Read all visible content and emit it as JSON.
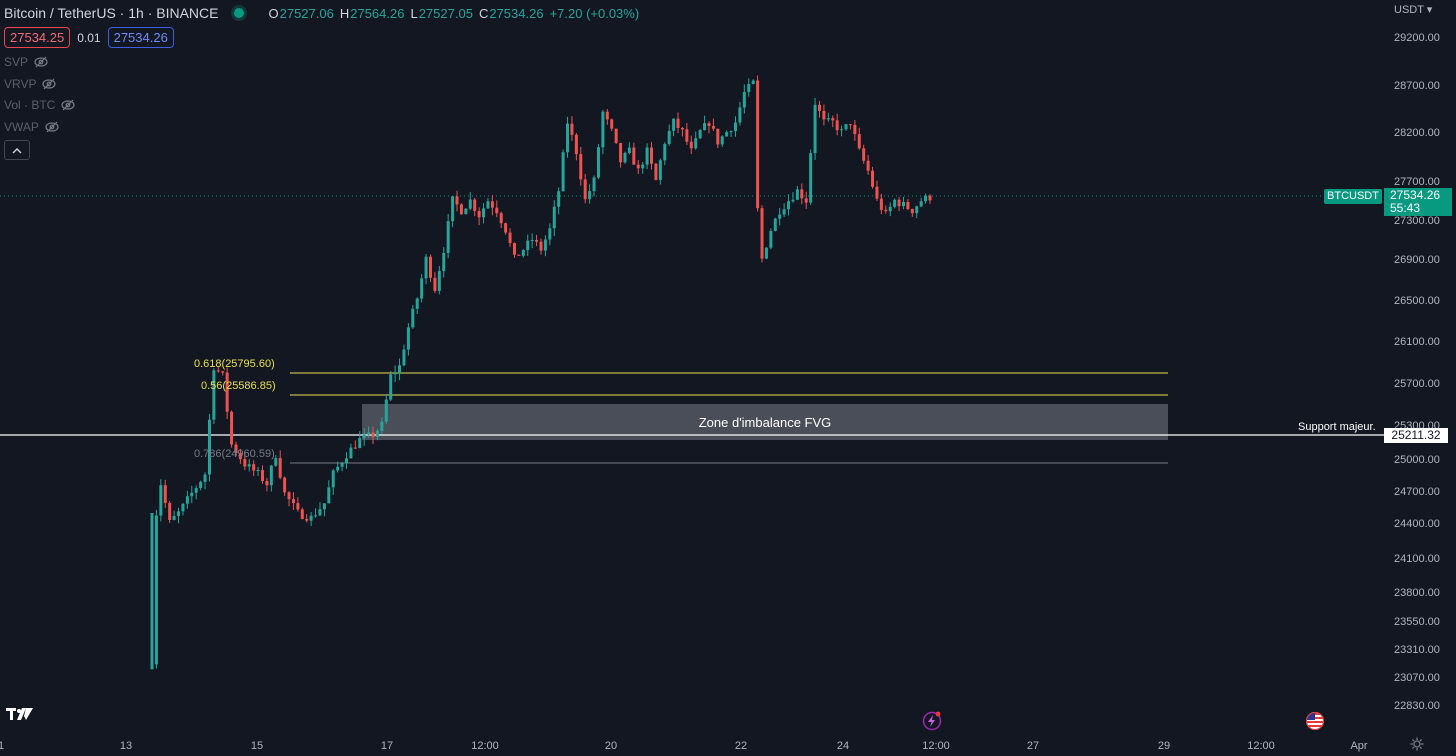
{
  "header": {
    "symbol": "Bitcoin / TetherUS · 1h · BINANCE",
    "open_label": "O",
    "open": "27527.06",
    "high_label": "H",
    "high": "27564.26",
    "low_label": "L",
    "low": "27527.05",
    "close_label": "C",
    "close": "27534.26",
    "change": "+7.20 (+0.03%)"
  },
  "order": {
    "sell_price": "27534.25",
    "spread": "0.01",
    "buy_price": "27534.26"
  },
  "indicators": [
    "SVP",
    "VRVP",
    "Vol · BTC",
    "VWAP"
  ],
  "currency": "USDT",
  "price_axis": {
    "labels": [
      "29200.00",
      "28700.00",
      "28200.00",
      "27700.00",
      "27300.00",
      "26900.00",
      "26500.00",
      "26100.00",
      "25700.00",
      "25300.00",
      "25000.00",
      "24700.00",
      "24400.00",
      "24100.00",
      "23800.00",
      "23550.00",
      "23310.00",
      "23070.00",
      "22830.00"
    ]
  },
  "time_axis": {
    "labels": [
      "1",
      "13",
      "15",
      "17",
      "12:00",
      "20",
      "22",
      "24",
      "12:00",
      "27",
      "29",
      "12:00",
      "Apr"
    ]
  },
  "current": {
    "ticker": "BTCUSDT",
    "price": "27534.26",
    "countdown": "55:43"
  },
  "support": {
    "label": "Support majeur.",
    "price": "25211.32"
  },
  "zone": {
    "label": "Zone d'imbalance FVG"
  },
  "fib_levels": [
    {
      "label": "0.618(25795.60)",
      "color": "#e8e04c"
    },
    {
      "label": "0.56(25586.85)",
      "color": "#e8e04c"
    },
    {
      "label": "0.786(24960.59)",
      "color": "#787b86"
    }
  ],
  "colors": {
    "up": "#26a69a",
    "down": "#ef5350",
    "bg": "#131722"
  },
  "icons": [
    "eye-slash-icon",
    "chevron-up-icon",
    "tradingview-logo-icon",
    "lightning-icon",
    "us-flag-icon",
    "gear-icon"
  ],
  "chart_data": {
    "type": "candlestick",
    "symbol": "BTCUSDT",
    "interval": "1h",
    "ylim": [
      22700,
      29400
    ],
    "x_ticks": [
      "13",
      "15",
      "17",
      "12:00",
      "20",
      "22",
      "24",
      "12:00",
      "27",
      "29",
      "12:00",
      "Apr"
    ],
    "close_path": [
      [
        0,
        22750
      ],
      [
        1,
        24300
      ],
      [
        2,
        24600
      ],
      [
        4,
        24200
      ],
      [
        6,
        24300
      ],
      [
        9,
        24500
      ],
      [
        12,
        24700
      ],
      [
        14,
        25800
      ],
      [
        16,
        25700
      ],
      [
        18,
        25000
      ],
      [
        21,
        24800
      ],
      [
        24,
        24700
      ],
      [
        26,
        24600
      ],
      [
        28,
        24900
      ],
      [
        30,
        24500
      ],
      [
        33,
        24300
      ],
      [
        36,
        24250
      ],
      [
        39,
        24400
      ],
      [
        41,
        24700
      ],
      [
        44,
        24900
      ],
      [
        47,
        25050
      ],
      [
        50,
        25100
      ],
      [
        52,
        25200
      ],
      [
        54,
        25700
      ],
      [
        56,
        25800
      ],
      [
        58,
        26200
      ],
      [
        60,
        26500
      ],
      [
        62,
        26900
      ],
      [
        64,
        26600
      ],
      [
        66,
        27000
      ],
      [
        68,
        27500
      ],
      [
        70,
        27400
      ],
      [
        72,
        27500
      ],
      [
        74,
        27350
      ],
      [
        76,
        27500
      ],
      [
        78,
        27400
      ],
      [
        80,
        27200
      ],
      [
        82,
        26900
      ],
      [
        84,
        27000
      ],
      [
        86,
        27100
      ],
      [
        88,
        27000
      ],
      [
        90,
        27200
      ],
      [
        92,
        27600
      ],
      [
        94,
        28300
      ],
      [
        96,
        28000
      ],
      [
        98,
        27500
      ],
      [
        100,
        27700
      ],
      [
        102,
        28400
      ],
      [
        104,
        28200
      ],
      [
        106,
        27900
      ],
      [
        108,
        28000
      ],
      [
        110,
        27800
      ],
      [
        112,
        28000
      ],
      [
        114,
        27700
      ],
      [
        116,
        28100
      ],
      [
        118,
        28300
      ],
      [
        120,
        28200
      ],
      [
        122,
        28000
      ],
      [
        124,
        28200
      ],
      [
        126,
        28300
      ],
      [
        128,
        28100
      ],
      [
        130,
        28200
      ],
      [
        132,
        28300
      ],
      [
        134,
        28600
      ],
      [
        136,
        28700
      ],
      [
        137,
        27400
      ],
      [
        138,
        26900
      ],
      [
        140,
        27200
      ],
      [
        142,
        27400
      ],
      [
        144,
        27500
      ],
      [
        146,
        27600
      ],
      [
        148,
        27500
      ],
      [
        150,
        28500
      ],
      [
        152,
        28300
      ],
      [
        154,
        28300
      ],
      [
        156,
        28200
      ],
      [
        158,
        28300
      ],
      [
        160,
        28000
      ],
      [
        162,
        27800
      ],
      [
        164,
        27500
      ],
      [
        166,
        27350
      ],
      [
        168,
        27500
      ],
      [
        170,
        27450
      ],
      [
        172,
        27400
      ],
      [
        174,
        27500
      ],
      [
        176,
        27534
      ]
    ]
  }
}
